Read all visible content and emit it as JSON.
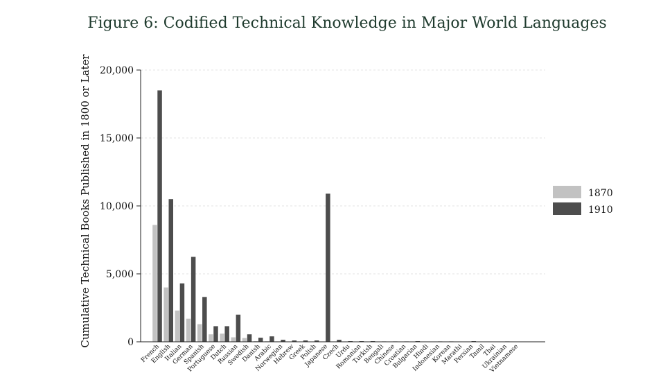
{
  "chart_data": {
    "type": "bar",
    "title": "Figure 6: Codified Technical Knowledge in Major World Languages",
    "xlabel": "",
    "ylabel": "Cumulative Technical Books Published in 1800 or Later",
    "ylim": [
      0,
      20000
    ],
    "yticks": [
      0,
      5000,
      10000,
      15000,
      20000
    ],
    "ytick_labels": [
      "0",
      "5,000",
      "10,000",
      "15,000",
      "20,000"
    ],
    "grid": true,
    "legend_position": "right",
    "categories": [
      "French",
      "English",
      "Italian",
      "German",
      "Spanish",
      "Portuguese",
      "Dutch",
      "Russian",
      "Swedish",
      "Danish",
      "Arabic",
      "Norwegian",
      "Hebrew",
      "Greek",
      "Polish",
      "Japanese",
      "Czech",
      "Urdu",
      "Romanian",
      "Turkish",
      "Bengali",
      "Chinese",
      "Croatian",
      "Bulgarian",
      "Hindi",
      "Indonesian",
      "Korean",
      "Marathi",
      "Persian",
      "Tamil",
      "Thai",
      "Ukrainian",
      "Vietnamese"
    ],
    "series": [
      {
        "name": "1870",
        "color": "#c2c2c2",
        "values": [
          8600,
          4000,
          2300,
          1700,
          1300,
          550,
          600,
          330,
          280,
          50,
          40,
          30,
          20,
          20,
          20,
          0,
          0,
          0,
          0,
          0,
          0,
          0,
          0,
          0,
          0,
          0,
          0,
          0,
          0,
          0,
          0,
          0,
          0
        ]
      },
      {
        "name": "1910",
        "color": "#4d4d4d",
        "values": [
          18500,
          10500,
          4300,
          6250,
          3300,
          1150,
          1150,
          2000,
          550,
          300,
          400,
          150,
          100,
          100,
          100,
          10900,
          150,
          50,
          50,
          50,
          30,
          30,
          30,
          50,
          0,
          30,
          30,
          0,
          50,
          0,
          0,
          30,
          0
        ]
      }
    ]
  }
}
